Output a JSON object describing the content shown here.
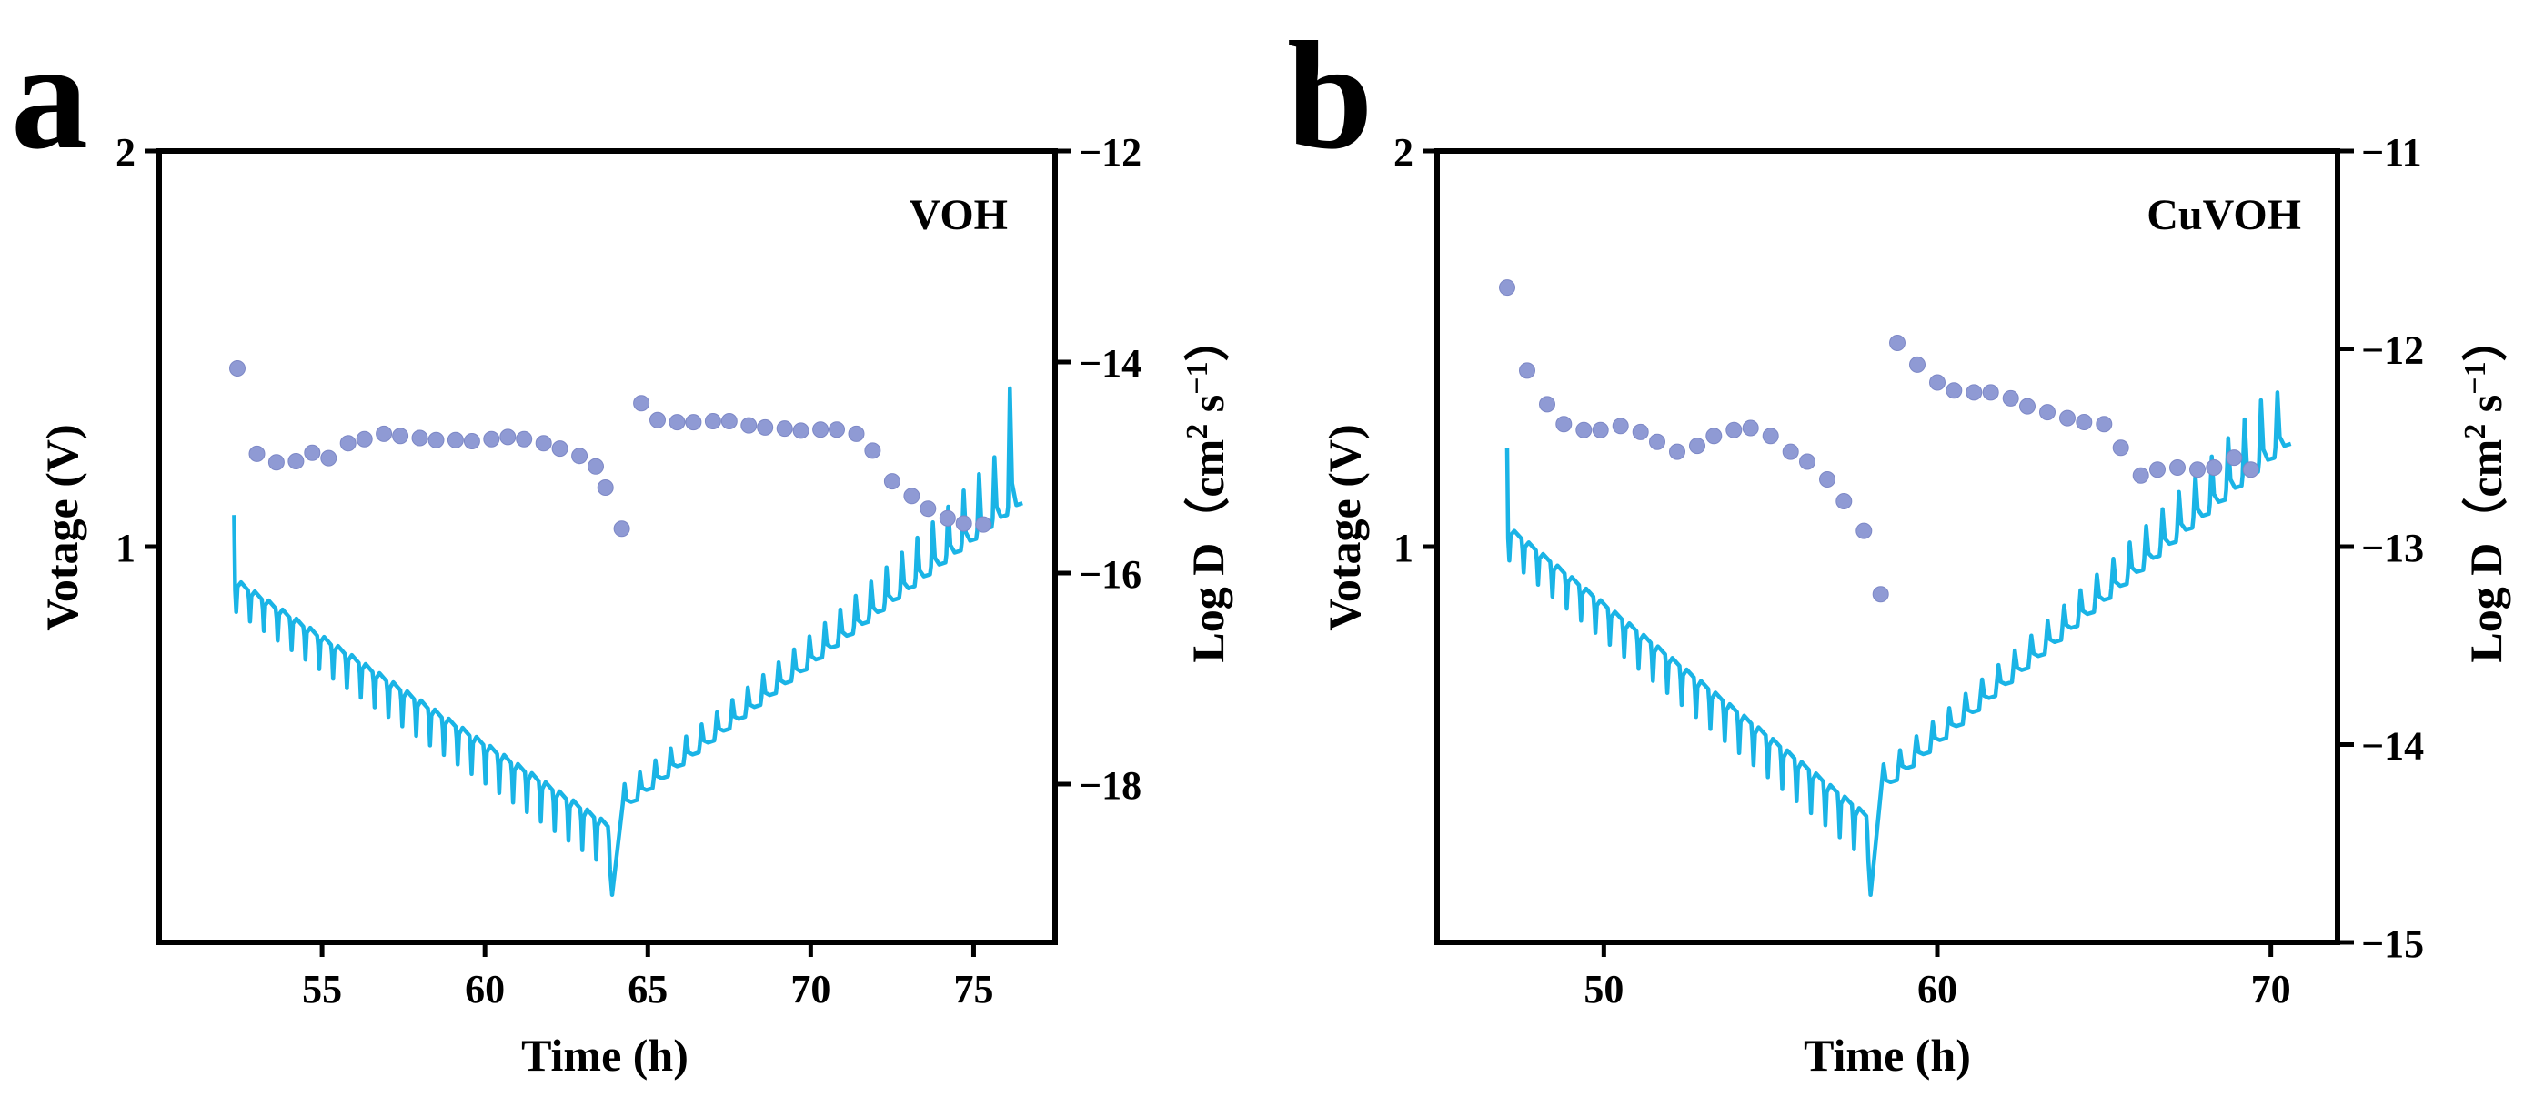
{
  "colors": {
    "voltage": "#1ab4e6",
    "logD": "#8f9ad4",
    "axis": "#000000"
  },
  "chart_data": [
    {
      "type": "line+scatter",
      "panel_label": "a",
      "series_label": "VOH",
      "xlabel": "Time (h)",
      "ylabel_left": "Votage (V)",
      "ylabel_right": "Log D（cm² s⁻¹）",
      "ylabel_right_parts": {
        "prefix": "Log D（cm",
        "sup1": "2",
        "mid": " s",
        "sup2": "−1",
        "suffix": "）"
      },
      "xlim": [
        50,
        77.5
      ],
      "ylim_left": [
        0,
        2
      ],
      "ylim_right": [
        -19.5,
        -12
      ],
      "xticks": [
        55,
        60,
        65,
        70,
        75
      ],
      "xtick_labels": [
        "55",
        "60",
        "65",
        "70",
        "75"
      ],
      "yticks_left": [
        1,
        2
      ],
      "ytick_labels_left": [
        "1",
        "2"
      ],
      "yticks_right": [
        -12,
        -14,
        -16,
        -18
      ],
      "ytick_labels_right": [
        "−12",
        "−14",
        "−16",
        "−18"
      ],
      "voltage": {
        "name": "Voltage",
        "start_time": 52.3,
        "turn_time": 64.2,
        "end_time": 76.5,
        "discharge_pulses": 28,
        "charge_pulses": 26,
        "discharge_base_start": 0.92,
        "discharge_base_end": 0.3,
        "charge_base_start": 0.35,
        "charge_base_end": 1.1,
        "first_peak": 1.08,
        "min_value": 0.12,
        "final_peak": 1.4
      },
      "logD": {
        "name": "Log D",
        "x": [
          52.4,
          53.0,
          53.6,
          54.2,
          54.7,
          55.2,
          55.8,
          56.3,
          56.9,
          57.4,
          58.0,
          58.5,
          59.1,
          59.6,
          60.2,
          60.7,
          61.2,
          61.8,
          62.3,
          62.9,
          63.4,
          63.7,
          64.2,
          64.8,
          65.3,
          65.9,
          66.4,
          67.0,
          67.5,
          68.1,
          68.6,
          69.2,
          69.7,
          70.3,
          70.8,
          71.4,
          71.9,
          72.5,
          73.1,
          73.6,
          74.2,
          74.7,
          75.3
        ],
        "y": [
          -14.06,
          -14.87,
          -14.95,
          -14.94,
          -14.86,
          -14.91,
          -14.77,
          -14.73,
          -14.68,
          -14.7,
          -14.72,
          -14.74,
          -14.74,
          -14.75,
          -14.73,
          -14.71,
          -14.73,
          -14.77,
          -14.82,
          -14.89,
          -14.99,
          -15.19,
          -15.58,
          -14.39,
          -14.55,
          -14.57,
          -14.57,
          -14.56,
          -14.56,
          -14.6,
          -14.62,
          -14.63,
          -14.65,
          -14.64,
          -14.64,
          -14.68,
          -14.84,
          -15.13,
          -15.27,
          -15.39,
          -15.48,
          -15.53,
          -15.54
        ]
      }
    },
    {
      "type": "line+scatter",
      "panel_label": "b",
      "series_label": "CuVOH",
      "xlabel": "Time (h)",
      "ylabel_left": "Votage (V)",
      "ylabel_right": "Log D（cm² s⁻¹）",
      "ylabel_right_parts": {
        "prefix": "Log D（cm",
        "sup1": "2",
        "mid": " s",
        "sup2": "−1",
        "suffix": "）"
      },
      "xlim": [
        45,
        72
      ],
      "ylim_left": [
        0,
        2
      ],
      "ylim_right": [
        -15,
        -11
      ],
      "xticks": [
        50,
        60,
        70
      ],
      "xtick_labels": [
        "50",
        "60",
        "70"
      ],
      "yticks_left": [
        1,
        2
      ],
      "ytick_labels_left": [
        "1",
        "2"
      ],
      "yticks_right": [
        -11,
        -12,
        -13,
        -14,
        -15
      ],
      "ytick_labels_right": [
        "−11",
        "−12",
        "−13",
        "−14",
        "−15"
      ],
      "voltage": {
        "name": "Voltage",
        "start_time": 47.1,
        "turn_time": 58.3,
        "end_time": 70.6,
        "discharge_pulses": 26,
        "charge_pulses": 25,
        "discharge_base_start": 1.05,
        "discharge_base_end": 0.32,
        "charge_base_start": 0.4,
        "charge_base_end": 1.25,
        "first_peak": 1.25,
        "min_value": 0.12,
        "final_peak": 1.39
      },
      "logD": {
        "name": "Log D",
        "x": [
          47.1,
          47.7,
          48.3,
          48.8,
          49.4,
          49.9,
          50.5,
          51.1,
          51.6,
          52.2,
          52.8,
          53.3,
          53.9,
          54.4,
          55.0,
          55.6,
          56.1,
          56.7,
          57.2,
          57.8,
          58.3,
          58.8,
          59.4,
          60.0,
          60.5,
          61.1,
          61.6,
          62.2,
          62.7,
          63.3,
          63.9,
          64.4,
          65.0,
          65.5,
          66.1,
          66.6,
          67.2,
          67.8,
          68.3,
          68.9,
          69.4
        ],
        "y": [
          -11.69,
          -12.11,
          -12.28,
          -12.38,
          -12.41,
          -12.41,
          -12.39,
          -12.42,
          -12.47,
          -12.52,
          -12.49,
          -12.44,
          -12.41,
          -12.4,
          -12.44,
          -12.52,
          -12.57,
          -12.66,
          -12.77,
          -12.92,
          -13.24,
          -11.97,
          -12.08,
          -12.17,
          -12.21,
          -12.22,
          -12.22,
          -12.25,
          -12.29,
          -12.32,
          -12.35,
          -12.37,
          -12.38,
          -12.5,
          -12.64,
          -12.61,
          -12.6,
          -12.61,
          -12.6,
          -12.55,
          -12.61
        ]
      }
    }
  ]
}
